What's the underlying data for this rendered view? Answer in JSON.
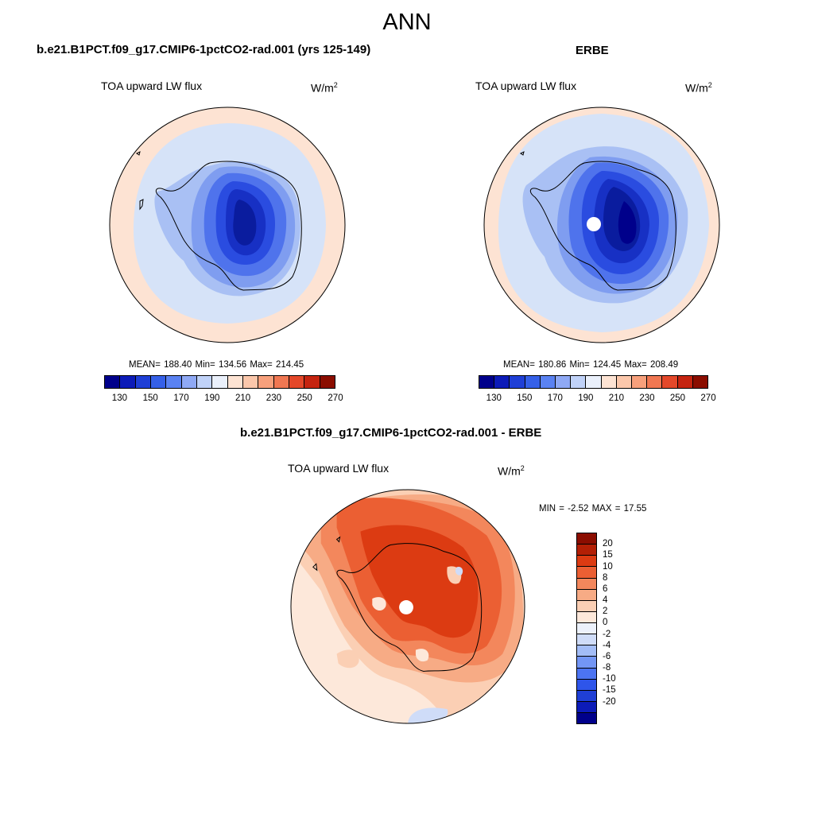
{
  "title": "ANN",
  "colors": {
    "abs_levels": [
      "#00008b",
      "#0c1bb8",
      "#1f3fd6",
      "#3560e8",
      "#5a82f2",
      "#8fa9f5",
      "#c0d2f8",
      "#eaf0fb",
      "#fde3d3",
      "#fbc7ab",
      "#f7a07c",
      "#f07752",
      "#e4482a",
      "#c52410",
      "#8b0d00"
    ],
    "diff_levels": [
      "#00008b",
      "#0c1bb8",
      "#1f3fd6",
      "#2e55ea",
      "#4c74f2",
      "#7396f5",
      "#a3bdf7",
      "#cfdcf8",
      "#ecf1fb",
      "#fde8da",
      "#fbcfb4",
      "#f7ab85",
      "#f3875c",
      "#eb5f33",
      "#dc3b12",
      "#b31f05",
      "#8b0d00"
    ]
  },
  "panels": {
    "left": {
      "run_title": "b.e21.B1PCT.f09_g17.CMIP6-1pctCO2-rad.001 (yrs 125-149)",
      "field": "TOA upward LW flux",
      "units": "W/m",
      "units_sup": "2",
      "stats": "MEAN= 188.40  Min= 134.56  Max= 214.45",
      "colorbar_labels": [
        "130",
        "150",
        "170",
        "190",
        "210",
        "230",
        "250",
        "270"
      ]
    },
    "right": {
      "run_title": "ERBE",
      "field": "TOA upward LW flux",
      "units": "W/m",
      "units_sup": "2",
      "stats": "MEAN= 180.86  Min= 124.45  Max= 208.49",
      "colorbar_labels": [
        "130",
        "150",
        "170",
        "190",
        "210",
        "230",
        "250",
        "270"
      ]
    },
    "diff": {
      "run_title": "b.e21.B1PCT.f09_g17.CMIP6-1pctCO2-rad.001 - ERBE",
      "field": "TOA upward LW flux",
      "units": "W/m",
      "units_sup": "2",
      "minmax": "MIN =  -2.52 MAX =  17.55",
      "colorbar_labels": [
        "20",
        "15",
        "10",
        "8",
        "6",
        "4",
        "2",
        "0",
        "-2",
        "-4",
        "-6",
        "-8",
        "-10",
        "-15",
        "-20"
      ]
    }
  }
}
